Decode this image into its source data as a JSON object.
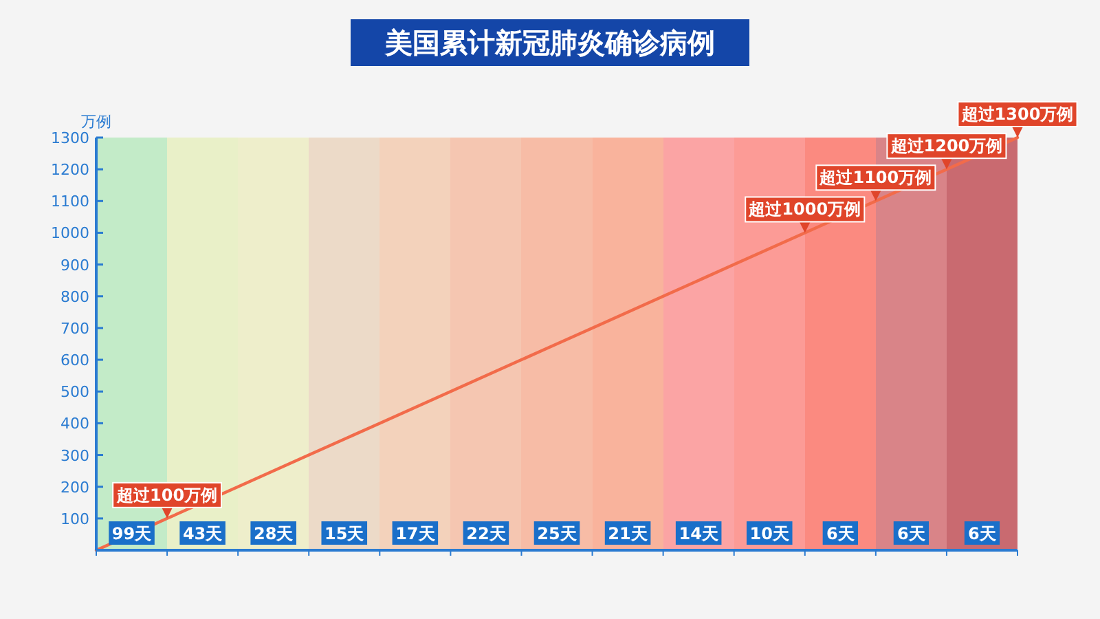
{
  "chart_data": {
    "type": "line",
    "title": "美国累计新冠肺炎确诊病例",
    "ylabel": "万例",
    "ylim": [
      0,
      1300
    ],
    "yticks": [
      100,
      200,
      300,
      400,
      500,
      600,
      700,
      800,
      900,
      1000,
      1100,
      1200,
      1300
    ],
    "grid": false,
    "marker": "none",
    "line_style": "solid",
    "categories": [
      null,
      null,
      null,
      null,
      null,
      null,
      null,
      null,
      null,
      null,
      null,
      null,
      null,
      null
    ],
    "series": [
      {
        "color": "#f26b4a",
        "values": [
          0,
          100,
          200,
          300,
          400,
          500,
          600,
          700,
          800,
          900,
          1000,
          1100,
          1200,
          1300
        ]
      }
    ],
    "annotations": [
      "99天",
      "43天",
      "28天",
      "15天",
      "17天",
      "22天",
      "25天",
      "21天",
      "14天",
      "10天",
      "6天",
      "6天",
      "6天",
      {
        "text": "超过100万例",
        "y": 100
      },
      {
        "text": "超过1000万例",
        "y": 1000
      },
      {
        "text": "超过1100万例",
        "y": 1100
      },
      {
        "text": "超过1200万例",
        "y": 1200
      },
      {
        "text": "超过1300万例",
        "y": 1300
      }
    ]
  }
}
